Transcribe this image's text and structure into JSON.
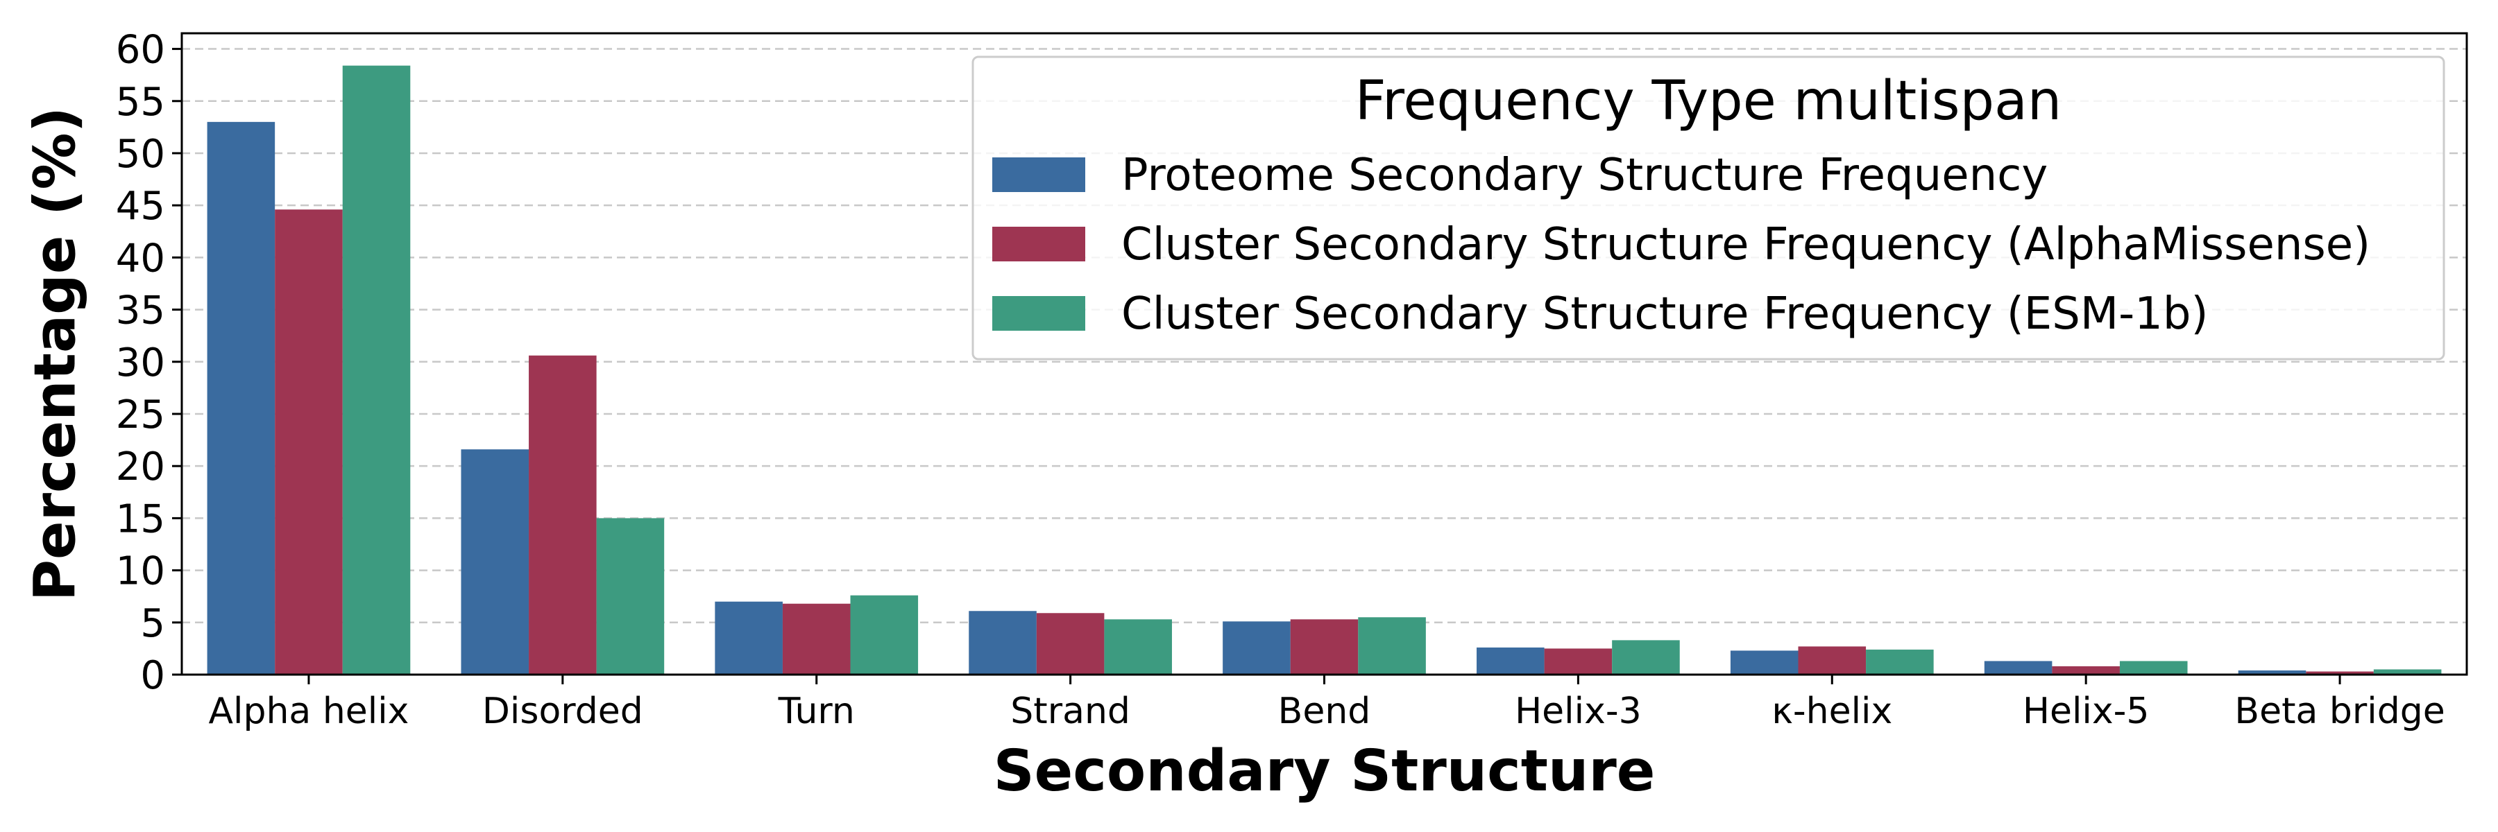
{
  "chart_data": {
    "type": "bar",
    "title": "",
    "xlabel": "Secondary Structure",
    "ylabel": "Percentage (%)",
    "ylim": [
      0,
      61.5
    ],
    "yticks": [
      0,
      5,
      10,
      15,
      20,
      25,
      30,
      35,
      40,
      45,
      50,
      55,
      60
    ],
    "grid": "horizontal-dashed",
    "legend_title": "Frequency Type multispan",
    "legend_placement": "top-right",
    "categories": [
      "Alpha helix",
      "Disorded",
      "Turn",
      "Strand",
      "Bend",
      "Helix-3",
      "κ-helix",
      "Helix-5",
      "Beta bridge"
    ],
    "series": [
      {
        "name": "Proteome Secondary Structure Frequency",
        "color": "#3a6b9f",
        "values": [
          53.0,
          21.6,
          7.0,
          6.1,
          5.1,
          2.6,
          2.3,
          1.3,
          0.4
        ]
      },
      {
        "name": "Cluster Secondary Structure Frequency (AlphaMissense)",
        "color": "#9e3552",
        "values": [
          44.6,
          30.6,
          6.8,
          5.9,
          5.3,
          2.5,
          2.7,
          0.8,
          0.3
        ]
      },
      {
        "name": "Cluster Secondary Structure Frequency (ESM-1b)",
        "color": "#3d9b80",
        "values": [
          58.4,
          15.0,
          7.6,
          5.3,
          5.5,
          3.3,
          2.4,
          1.3,
          0.5
        ]
      }
    ]
  }
}
